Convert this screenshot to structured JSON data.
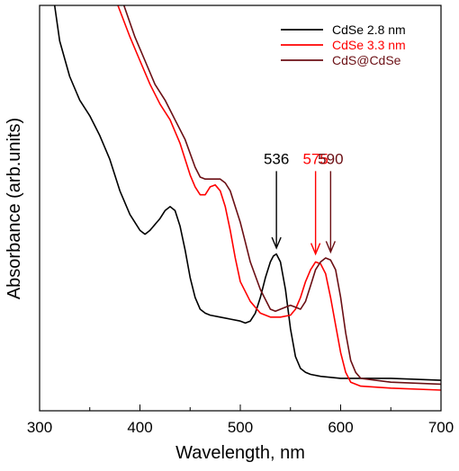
{
  "chart_data": {
    "type": "line",
    "title": "",
    "xlabel": "Wavelength, nm",
    "ylabel": "Absorbance (arb.units)",
    "xlim": [
      300,
      700
    ],
    "ylim": [
      0,
      1
    ],
    "x_ticks": [
      "300",
      "400",
      "500",
      "600",
      "700"
    ],
    "grid": false,
    "legend_position": "top-right",
    "series": [
      {
        "name": "CdSe 2.8 nm",
        "color": "#000000",
        "x": [
          315,
          320,
          330,
          340,
          350,
          360,
          370,
          380,
          390,
          400,
          405,
          410,
          420,
          425,
          430,
          435,
          440,
          445,
          450,
          455,
          460,
          465,
          470,
          480,
          490,
          500,
          505,
          510,
          515,
          520,
          525,
          530,
          533,
          536,
          540,
          545,
          550,
          555,
          560,
          565,
          570,
          580,
          600,
          650,
          700
        ],
        "values": [
          1.0,
          0.91,
          0.82,
          0.76,
          0.72,
          0.67,
          0.61,
          0.53,
          0.47,
          0.43,
          0.42,
          0.43,
          0.46,
          0.48,
          0.49,
          0.48,
          0.44,
          0.38,
          0.31,
          0.26,
          0.23,
          0.22,
          0.215,
          0.21,
          0.205,
          0.2,
          0.195,
          0.2,
          0.22,
          0.26,
          0.31,
          0.35,
          0.365,
          0.37,
          0.35,
          0.28,
          0.18,
          0.11,
          0.08,
          0.07,
          0.065,
          0.06,
          0.055,
          0.055,
          0.05
        ]
      },
      {
        "name": "CdSe 3.3 nm",
        "color": "#ff0000",
        "x": [
          378,
          390,
          400,
          410,
          420,
          430,
          440,
          450,
          455,
          460,
          465,
          470,
          475,
          480,
          485,
          490,
          495,
          500,
          510,
          520,
          530,
          540,
          550,
          555,
          560,
          565,
          570,
          575,
          580,
          585,
          590,
          595,
          600,
          605,
          610,
          620,
          650,
          700
        ],
        "values": [
          1.0,
          0.92,
          0.86,
          0.8,
          0.75,
          0.71,
          0.65,
          0.57,
          0.54,
          0.52,
          0.52,
          0.54,
          0.545,
          0.53,
          0.49,
          0.43,
          0.36,
          0.3,
          0.25,
          0.22,
          0.21,
          0.21,
          0.215,
          0.23,
          0.26,
          0.3,
          0.33,
          0.35,
          0.345,
          0.32,
          0.26,
          0.19,
          0.12,
          0.07,
          0.045,
          0.035,
          0.03,
          0.025
        ]
      },
      {
        "name": "CdS@CdSe",
        "color": "#6b0f14",
        "x": [
          384,
          395,
          405,
          415,
          425,
          435,
          445,
          455,
          460,
          465,
          470,
          475,
          480,
          485,
          490,
          495,
          500,
          505,
          510,
          520,
          530,
          535,
          540,
          545,
          550,
          555,
          560,
          565,
          570,
          575,
          580,
          585,
          590,
          595,
          600,
          605,
          610,
          615,
          620,
          650,
          700
        ],
        "values": [
          1.0,
          0.92,
          0.86,
          0.8,
          0.76,
          0.71,
          0.66,
          0.59,
          0.565,
          0.56,
          0.56,
          0.56,
          0.56,
          0.55,
          0.53,
          0.49,
          0.45,
          0.4,
          0.35,
          0.28,
          0.23,
          0.225,
          0.23,
          0.235,
          0.24,
          0.235,
          0.23,
          0.25,
          0.29,
          0.33,
          0.35,
          0.36,
          0.355,
          0.33,
          0.26,
          0.17,
          0.1,
          0.07,
          0.055,
          0.045,
          0.04
        ]
      }
    ],
    "annotations": [
      {
        "text": "536",
        "x": 536,
        "arrow_from": 0.58,
        "arrow_to": 0.385,
        "color": "#000000"
      },
      {
        "text": "575",
        "x": 575,
        "arrow_from": 0.58,
        "arrow_to": 0.37,
        "color": "#ff0000"
      },
      {
        "text": "590",
        "x": 590,
        "arrow_from": 0.58,
        "arrow_to": 0.375,
        "color": "#6b0f14"
      }
    ]
  }
}
